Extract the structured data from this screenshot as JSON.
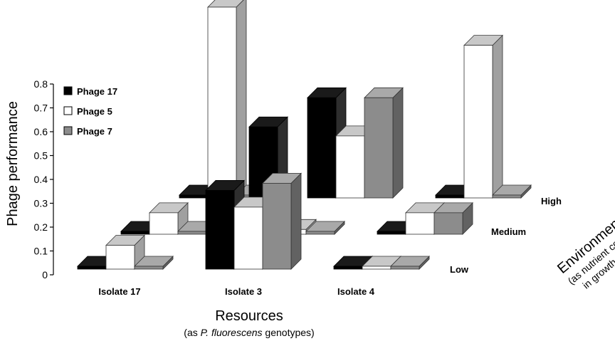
{
  "chart_data": {
    "type": "bar",
    "subtype": "3d-grouped-bar",
    "ylabel": "Phage performance",
    "ylim": [
      0,
      0.8
    ],
    "yticks": [
      "0",
      "0.1",
      "0.2",
      "0.3",
      "0.4",
      "0.5",
      "0.6",
      "0.7",
      "0.8"
    ],
    "xlabel": "Resources",
    "xlabel_sub_prefix": "(as ",
    "xlabel_sub_italic": "P. fluorescens",
    "xlabel_sub_suffix": " genotypes)",
    "categories": [
      "Isolate 17",
      "Isolate 3",
      "Isolate 4"
    ],
    "zlabel": "Environment",
    "zlabel_sub_1": "(as nutrient concentration",
    "zlabel_sub_2": "in growth medium)",
    "depth_categories": [
      "Low",
      "Medium",
      "High"
    ],
    "legend_position": "top-left",
    "colors": {
      "Phage 17": "#000000",
      "Phage 5": "#ffffff",
      "Phage 7": "#8c8c8c"
    },
    "series": [
      {
        "name": "Phage 17",
        "values": {
          "Low": [
            0,
            0.33,
            0
          ],
          "Medium": [
            0,
            0.45,
            0
          ],
          "High": [
            0,
            0.42,
            0
          ]
        }
      },
      {
        "name": "Phage 5",
        "values": {
          "Low": [
            0.1,
            0.26,
            0
          ],
          "Medium": [
            0.09,
            0.02,
            0.09
          ],
          "High": [
            0.8,
            0.26,
            0.64
          ]
        }
      },
      {
        "name": "Phage 7",
        "values": {
          "Low": [
            0,
            0.36,
            0
          ],
          "Medium": [
            0,
            0,
            0.09
          ],
          "High": [
            0,
            0.42,
            0
          ]
        }
      }
    ]
  }
}
